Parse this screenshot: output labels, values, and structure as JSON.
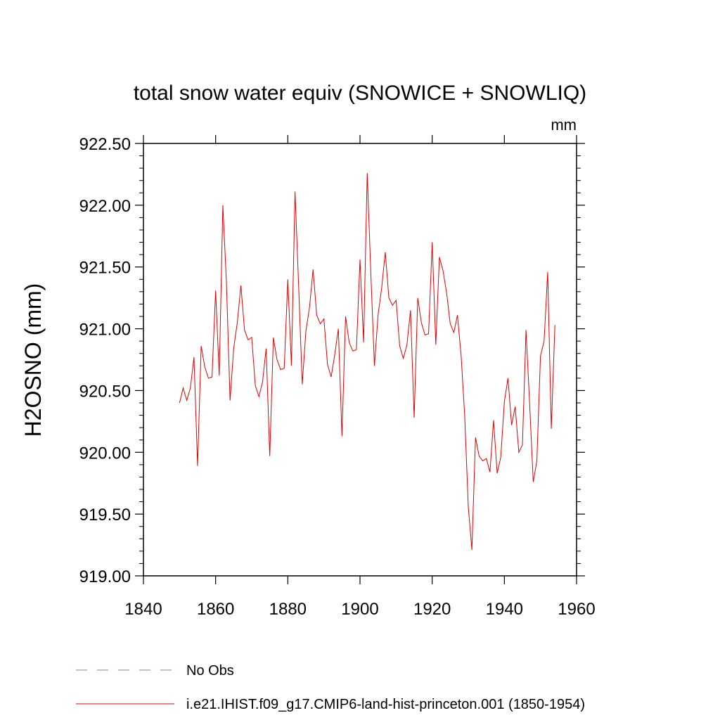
{
  "chart_data": {
    "type": "line",
    "title": "total snow water equiv (SNOWICE + SNOWLIQ)",
    "units": "mm",
    "ylabel": "H2OSNO  (mm)",
    "xlabel": "",
    "xlim": [
      1840,
      1960
    ],
    "ylim": [
      919.0,
      922.5
    ],
    "x_ticks": [
      1840,
      1860,
      1880,
      1900,
      1920,
      1940,
      1960
    ],
    "x_tick_labels": [
      "1840",
      "1860",
      "1880",
      "1900",
      "1920",
      "1940",
      "1960"
    ],
    "y_ticks": [
      919.0,
      919.5,
      920.0,
      920.5,
      921.0,
      921.5,
      922.0,
      922.5
    ],
    "y_tick_labels": [
      "919.00",
      "919.50",
      "920.00",
      "920.50",
      "921.00",
      "921.50",
      "922.00",
      "922.50"
    ],
    "grid": false,
    "legend_position": "bottom",
    "series": [
      {
        "name": "No Obs",
        "color": "#8080c0",
        "dash": "dashed",
        "x": [],
        "y": []
      },
      {
        "name": "i.e21.IHIST.f09_g17.CMIP6-land-hist-princeton.001 (1850-1954)",
        "color": "#e00000",
        "dash": "solid",
        "x": [
          1850,
          1851,
          1852,
          1853,
          1854,
          1855,
          1856,
          1857,
          1858,
          1859,
          1860,
          1861,
          1862,
          1863,
          1864,
          1865,
          1866,
          1867,
          1868,
          1869,
          1870,
          1871,
          1872,
          1873,
          1874,
          1875,
          1876,
          1877,
          1878,
          1879,
          1880,
          1881,
          1882,
          1883,
          1884,
          1885,
          1886,
          1887,
          1888,
          1889,
          1890,
          1891,
          1892,
          1893,
          1894,
          1895,
          1896,
          1897,
          1898,
          1899,
          1900,
          1901,
          1902,
          1903,
          1904,
          1905,
          1906,
          1907,
          1908,
          1909,
          1910,
          1911,
          1912,
          1913,
          1914,
          1915,
          1916,
          1917,
          1918,
          1919,
          1920,
          1921,
          1922,
          1923,
          1924,
          1925,
          1926,
          1927,
          1928,
          1929,
          1930,
          1931,
          1932,
          1933,
          1934,
          1935,
          1936,
          1937,
          1938,
          1939,
          1940,
          1941,
          1942,
          1943,
          1944,
          1945,
          1946,
          1947,
          1948,
          1949,
          1950,
          1951,
          1952,
          1953,
          1954
        ],
        "y": [
          920.4,
          920.52,
          920.42,
          920.52,
          920.77,
          919.89,
          920.86,
          920.69,
          920.6,
          920.61,
          921.31,
          920.62,
          922.0,
          921.37,
          920.42,
          920.84,
          921.05,
          921.35,
          920.99,
          920.91,
          920.93,
          920.54,
          920.45,
          920.57,
          920.84,
          919.97,
          920.93,
          920.75,
          920.67,
          920.68,
          921.4,
          920.7,
          922.11,
          921.35,
          920.55,
          920.98,
          921.17,
          921.48,
          921.11,
          921.04,
          921.08,
          920.71,
          920.61,
          920.79,
          921.0,
          920.13,
          921.1,
          920.89,
          920.82,
          920.83,
          921.56,
          920.89,
          922.26,
          921.45,
          920.7,
          921.11,
          921.33,
          921.62,
          921.25,
          921.19,
          921.23,
          920.86,
          920.76,
          920.87,
          921.15,
          920.28,
          921.25,
          921.05,
          920.95,
          920.96,
          921.7,
          920.87,
          921.58,
          921.47,
          921.29,
          921.04,
          920.97,
          921.11,
          920.79,
          920.3,
          919.56,
          919.21,
          920.12,
          919.97,
          919.93,
          919.95,
          919.84,
          920.26,
          919.83,
          919.96,
          920.41,
          920.6,
          920.22,
          920.37,
          920.0,
          920.06,
          920.99,
          920.39,
          919.76,
          919.93,
          920.78,
          920.9,
          921.46,
          920.19,
          921.03
        ]
      }
    ]
  }
}
